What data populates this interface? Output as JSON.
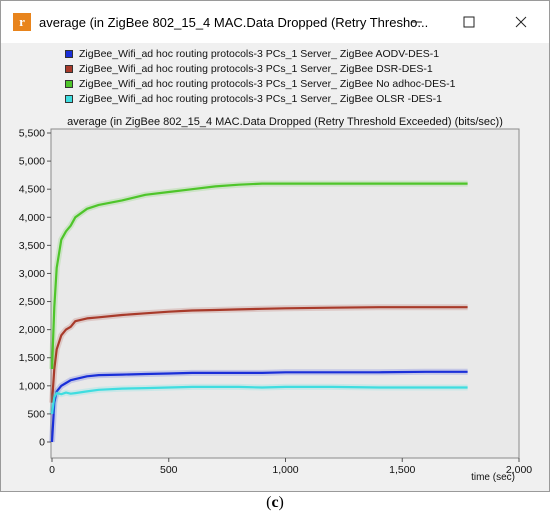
{
  "window": {
    "title": "average (in ZigBee 802_15_4 MAC.Data Dropped (Retry Thresho...",
    "app_icon": "r",
    "minimize_icon": "minimize-icon",
    "maximize_icon": "maximize-icon",
    "close_icon": "close-icon"
  },
  "legend": [
    {
      "label": "ZigBee_Wifi_ad hoc routing protocols-3 PCs_1 Server_ ZigBee  AODV-DES-1",
      "color": "#1a2fd8"
    },
    {
      "label": "ZigBee_Wifi_ad hoc routing protocols-3 PCs_1 Server_ ZigBee DSR-DES-1",
      "color": "#a83a2a"
    },
    {
      "label": "ZigBee_Wifi_ad hoc routing protocols-3 PCs_1 Server_ ZigBee No adhoc-DES-1",
      "color": "#4ec52a"
    },
    {
      "label": "ZigBee_Wifi_ad hoc routing protocols-3 PCs_1 Server_ ZigBee OLSR -DES-1",
      "color": "#3fdde0"
    }
  ],
  "caption": "(c)",
  "chart_data": {
    "type": "line",
    "title": "average (in ZigBee 802_15_4 MAC.Data Dropped (Retry Threshold Exceeded) (bits/sec))",
    "xlabel": "time (sec)",
    "ylabel": "",
    "xlim": [
      0,
      2000
    ],
    "ylim": [
      0,
      5500
    ],
    "x_ticks": [
      "0",
      "500",
      "1,000",
      "1,500",
      "2,000"
    ],
    "y_ticks": [
      "0",
      "500",
      "1,000",
      "1,500",
      "2,000",
      "2,500",
      "3,000",
      "3,500",
      "4,000",
      "4,500",
      "5,000",
      "5,500"
    ],
    "grid": false,
    "series": [
      {
        "name": "ZigBee_Wifi_ad hoc routing protocols-3 PCs_1 Server_ ZigBee  AODV-DES-1",
        "color": "#1a2fd8",
        "x": [
          0,
          10,
          20,
          40,
          60,
          80,
          100,
          150,
          200,
          300,
          400,
          500,
          600,
          700,
          800,
          900,
          1000,
          1200,
          1400,
          1600,
          1780
        ],
        "y": [
          0,
          700,
          900,
          1000,
          1050,
          1100,
          1120,
          1170,
          1190,
          1200,
          1210,
          1220,
          1230,
          1230,
          1230,
          1230,
          1240,
          1240,
          1240,
          1250,
          1250
        ]
      },
      {
        "name": "ZigBee_Wifi_ad hoc routing protocols-3 PCs_1 Server_ ZigBee DSR-DES-1",
        "color": "#a83a2a",
        "x": [
          0,
          10,
          20,
          40,
          60,
          80,
          100,
          150,
          200,
          300,
          400,
          500,
          600,
          700,
          800,
          900,
          1000,
          1200,
          1400,
          1600,
          1780
        ],
        "y": [
          700,
          1300,
          1650,
          1900,
          2000,
          2050,
          2150,
          2200,
          2220,
          2260,
          2290,
          2320,
          2340,
          2350,
          2360,
          2370,
          2380,
          2390,
          2400,
          2400,
          2400
        ]
      },
      {
        "name": "ZigBee_Wifi_ad hoc routing protocols-3 PCs_1 Server_ ZigBee No adhoc-DES-1",
        "color": "#4ec52a",
        "x": [
          0,
          10,
          20,
          40,
          60,
          80,
          100,
          150,
          200,
          300,
          400,
          500,
          600,
          700,
          800,
          900,
          1000,
          1200,
          1400,
          1600,
          1780
        ],
        "y": [
          1300,
          2400,
          3100,
          3600,
          3750,
          3850,
          4000,
          4150,
          4220,
          4300,
          4400,
          4450,
          4500,
          4550,
          4580,
          4600,
          4600,
          4600,
          4600,
          4600,
          4600
        ]
      },
      {
        "name": "ZigBee_Wifi_ad hoc routing protocols-3 PCs_1 Server_ ZigBee OLSR -DES-1",
        "color": "#3fdde0",
        "x": [
          0,
          10,
          20,
          40,
          60,
          80,
          100,
          150,
          200,
          300,
          400,
          500,
          600,
          700,
          800,
          900,
          1000,
          1200,
          1400,
          1600,
          1780
        ],
        "y": [
          500,
          800,
          870,
          850,
          880,
          860,
          870,
          900,
          930,
          950,
          960,
          970,
          980,
          980,
          980,
          970,
          980,
          980,
          970,
          970,
          970
        ]
      }
    ]
  }
}
